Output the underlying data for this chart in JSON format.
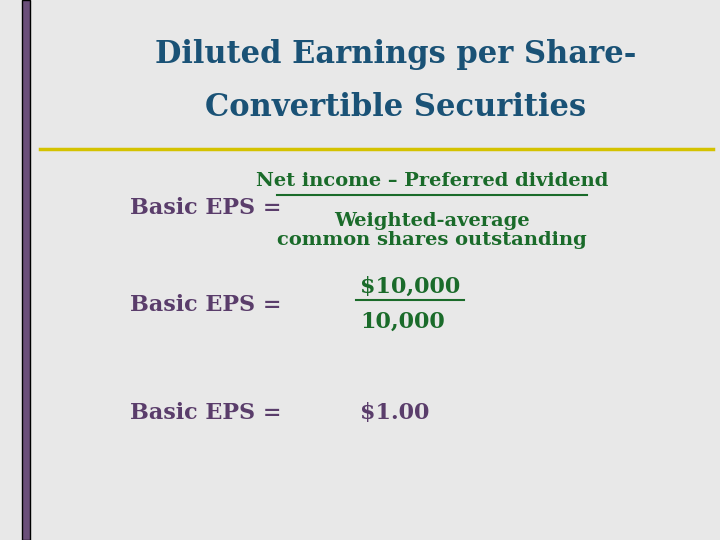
{
  "title_line1": "Diluted Earnings per Share-",
  "title_line2": "Convertible Securities",
  "title_color": "#1a5276",
  "bg_color": "#e8e8e8",
  "left_bar_color": "#6b4f7a",
  "yellow_line_color": "#d4c200",
  "label_color": "#5a3d6b",
  "fraction_color": "#1a6b2a",
  "row1_label": "Basic EPS =",
  "row1_num": "Net income – Preferred dividend",
  "row1_den_line1": "Weighted-average",
  "row1_den_line2": "common shares outstanding",
  "row2_label": "Basic EPS =",
  "row2_num": "$10,000",
  "row2_den": "10,000",
  "row3_label": "Basic EPS =",
  "row3_value": "$1.00"
}
